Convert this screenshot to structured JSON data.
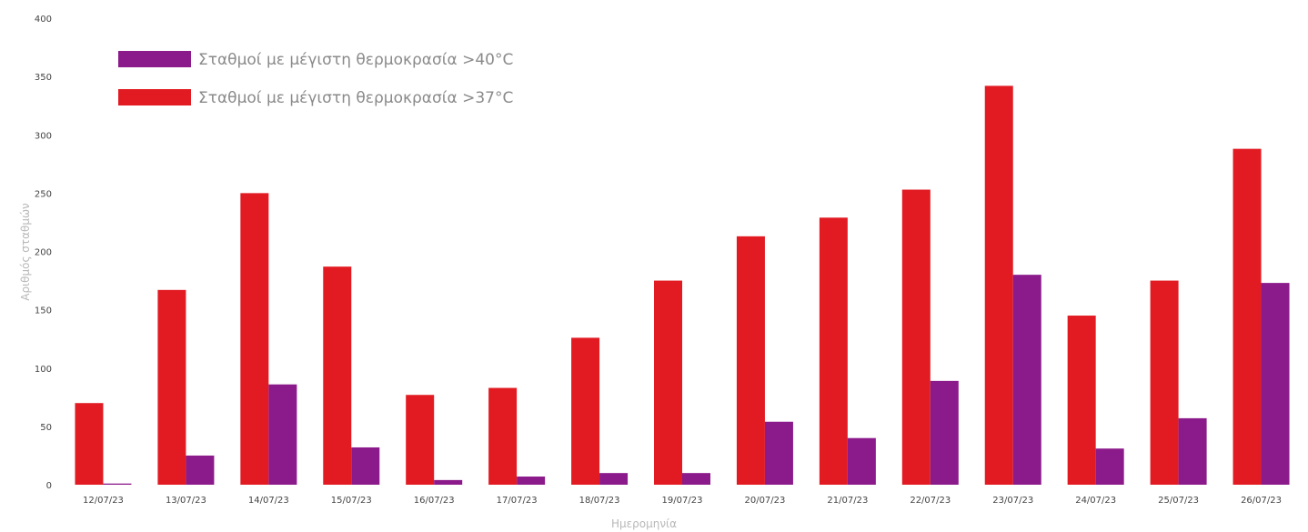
{
  "chart_data": {
    "type": "bar",
    "categories": [
      "12/07/23",
      "13/07/23",
      "14/07/23",
      "15/07/23",
      "16/07/23",
      "17/07/23",
      "18/07/23",
      "19/07/23",
      "20/07/23",
      "21/07/23",
      "22/07/23",
      "23/07/23",
      "24/07/23",
      "25/07/23",
      "26/07/23"
    ],
    "series": [
      {
        "name": "Σταθμοί με μέγιστη θερμοκρασία >37°C",
        "color": "#e21b23",
        "values": [
          70,
          167,
          250,
          187,
          77,
          83,
          126,
          175,
          213,
          229,
          253,
          342,
          145,
          175,
          288
        ]
      },
      {
        "name": "Σταθμοί με μέγιστη θερμοκρασία >40°C",
        "color": "#8b1a8a",
        "values": [
          1,
          25,
          86,
          32,
          4,
          7,
          10,
          10,
          54,
          40,
          89,
          180,
          31,
          57,
          173
        ]
      }
    ],
    "xlabel": "Ημερομηνία",
    "ylabel": "Αριθμός σταθμών",
    "ylim": [
      0,
      400
    ],
    "yticks": [
      "0",
      "50",
      "100",
      "150",
      "200",
      "250",
      "300",
      "350",
      "400"
    ],
    "legend_position": "top-left",
    "grid": false
  }
}
